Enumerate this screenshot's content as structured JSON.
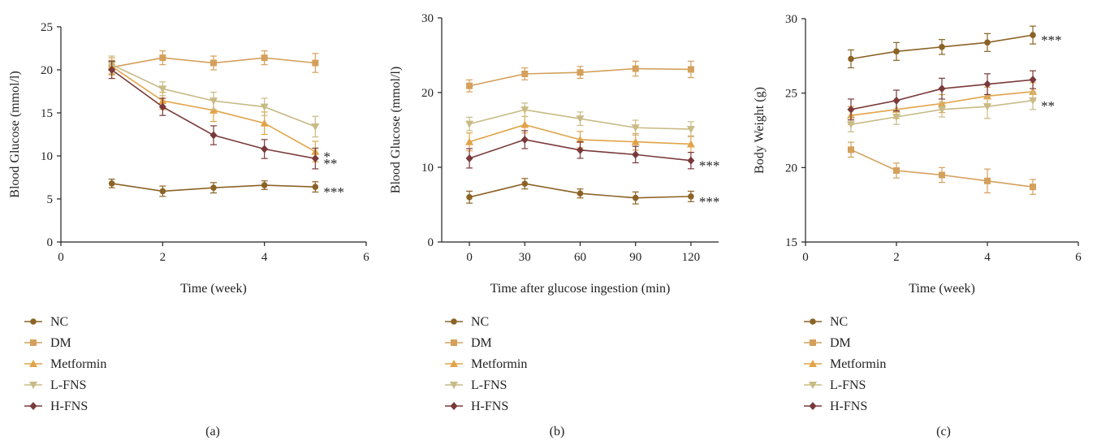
{
  "figure": {
    "panels": [
      "a",
      "b",
      "c"
    ]
  },
  "chart_data": [
    {
      "panel": "(a)",
      "type": "line",
      "xlabel": "Time (week)",
      "ylabel": "Blood Glucose (mmol/l)",
      "xlim": [
        0,
        6
      ],
      "ylim": [
        0,
        25
      ],
      "xticks": [
        0,
        2,
        4,
        6
      ],
      "yticks": [
        0,
        5,
        10,
        15,
        20,
        25
      ],
      "x": [
        1,
        2,
        3,
        4,
        5
      ],
      "legend": "below",
      "grid": false,
      "series": [
        {
          "name": "NC",
          "marker": "circle",
          "color": "#8B6326",
          "values": [
            6.8,
            5.9,
            6.3,
            6.6,
            6.4
          ],
          "errors": [
            0.5,
            0.6,
            0.6,
            0.5,
            0.6
          ]
        },
        {
          "name": "DM",
          "marker": "square",
          "color": "#D4A05C",
          "values": [
            20.3,
            21.4,
            20.8,
            21.4,
            20.8
          ],
          "errors": [
            0.8,
            0.8,
            0.8,
            0.8,
            1.1
          ]
        },
        {
          "name": "Metformin",
          "marker": "triangle-up",
          "color": "#E2A349",
          "values": [
            20.4,
            16.4,
            15.3,
            13.8,
            10.5
          ],
          "errors": [
            1.0,
            1.0,
            1.3,
            1.3,
            1.2
          ]
        },
        {
          "name": "L-FNS",
          "marker": "triangle-down",
          "color": "#C8BB85",
          "values": [
            20.6,
            17.8,
            16.4,
            15.7,
            13.4
          ],
          "errors": [
            1.0,
            0.8,
            1.0,
            1.0,
            1.2
          ]
        },
        {
          "name": "H-FNS",
          "marker": "diamond",
          "color": "#7A3A3A",
          "values": [
            20.0,
            15.7,
            12.4,
            10.8,
            9.7
          ],
          "errors": [
            1.0,
            1.0,
            1.1,
            1.1,
            1.2
          ]
        }
      ],
      "annotations": [
        {
          "text": "*",
          "x": 5,
          "y": 10.5
        },
        {
          "text": "**",
          "x": 5,
          "y": 9.7
        },
        {
          "text": "***",
          "x": 5,
          "y": 6.4
        }
      ]
    },
    {
      "panel": "(b)",
      "type": "line",
      "xlabel": "Time after glucose ingestion (min)",
      "ylabel": "Blood Glucose (mmol/l)",
      "xlim": [
        -15,
        135
      ],
      "ylim": [
        0,
        30
      ],
      "xticks": [
        0,
        30,
        60,
        90,
        120
      ],
      "yticks": [
        0,
        10,
        20,
        30
      ],
      "x": [
        0,
        30,
        60,
        90,
        120
      ],
      "legend": "below",
      "grid": false,
      "series": [
        {
          "name": "NC",
          "marker": "circle",
          "color": "#8B6326",
          "values": [
            6.0,
            7.8,
            6.5,
            5.9,
            6.1
          ],
          "errors": [
            0.8,
            0.7,
            0.6,
            0.8,
            0.7
          ]
        },
        {
          "name": "DM",
          "marker": "square",
          "color": "#D4A05C",
          "values": [
            20.9,
            22.5,
            22.7,
            23.2,
            23.1
          ],
          "errors": [
            0.8,
            0.8,
            0.8,
            1.0,
            1.1
          ]
        },
        {
          "name": "Metformin",
          "marker": "triangle-up",
          "color": "#E2A349",
          "values": [
            13.4,
            15.7,
            13.7,
            13.4,
            13.1
          ],
          "errors": [
            1.2,
            1.1,
            1.1,
            1.1,
            1.1
          ]
        },
        {
          "name": "L-FNS",
          "marker": "triangle-down",
          "color": "#C8BB85",
          "values": [
            15.8,
            17.7,
            16.5,
            15.3,
            15.1
          ],
          "errors": [
            0.9,
            0.9,
            0.9,
            1.0,
            1.0
          ]
        },
        {
          "name": "H-FNS",
          "marker": "diamond",
          "color": "#7A3A3A",
          "values": [
            11.2,
            13.7,
            12.3,
            11.7,
            10.9
          ],
          "errors": [
            1.3,
            1.2,
            1.1,
            1.1,
            1.1
          ]
        }
      ],
      "annotations": [
        {
          "text": "***",
          "x": 120,
          "y": 10.9
        },
        {
          "text": "***",
          "x": 120,
          "y": 6.1
        }
      ]
    },
    {
      "panel": "(c)",
      "type": "line",
      "xlabel": "Time (week)",
      "ylabel": "Body Weight (g)",
      "xlim": [
        0,
        6
      ],
      "ylim": [
        15,
        30
      ],
      "xticks": [
        0,
        2,
        4,
        6
      ],
      "yticks": [
        15,
        20,
        25,
        30
      ],
      "x": [
        1,
        2,
        3,
        4,
        5
      ],
      "legend": "below",
      "grid": false,
      "series": [
        {
          "name": "NC",
          "marker": "circle",
          "color": "#8B6326",
          "values": [
            27.3,
            27.8,
            28.1,
            28.4,
            28.9
          ],
          "errors": [
            0.6,
            0.6,
            0.5,
            0.6,
            0.6
          ]
        },
        {
          "name": "DM",
          "marker": "square",
          "color": "#D4A05C",
          "values": [
            21.2,
            19.8,
            19.5,
            19.1,
            18.7
          ],
          "errors": [
            0.5,
            0.5,
            0.5,
            0.8,
            0.5
          ]
        },
        {
          "name": "Metformin",
          "marker": "triangle-up",
          "color": "#E2A349",
          "values": [
            23.5,
            23.9,
            24.3,
            24.8,
            25.1
          ],
          "errors": [
            0.6,
            0.6,
            0.6,
            0.6,
            0.6
          ]
        },
        {
          "name": "L-FNS",
          "marker": "triangle-down",
          "color": "#C8BB85",
          "values": [
            22.9,
            23.4,
            23.9,
            24.1,
            24.5
          ],
          "errors": [
            0.5,
            0.5,
            0.5,
            0.8,
            0.6
          ]
        },
        {
          "name": "H-FNS",
          "marker": "diamond",
          "color": "#7A3A3A",
          "values": [
            23.9,
            24.5,
            25.3,
            25.6,
            25.9
          ],
          "errors": [
            0.7,
            0.7,
            0.7,
            0.7,
            0.6
          ]
        }
      ],
      "annotations": [
        {
          "text": "***",
          "x": 5,
          "y": 28.9
        },
        {
          "text": "**",
          "x": 5,
          "y": 24.5
        }
      ]
    }
  ]
}
